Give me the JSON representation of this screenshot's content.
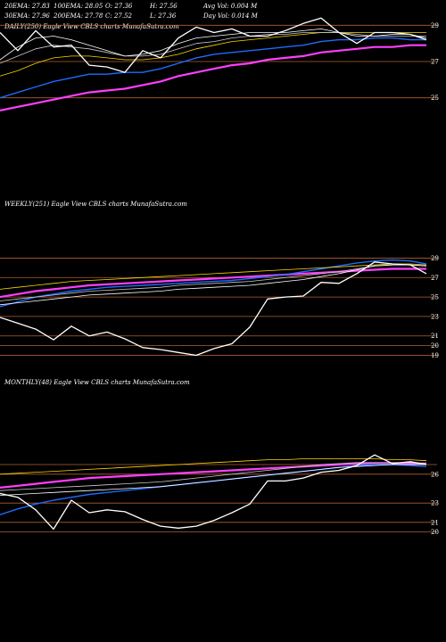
{
  "header": {
    "row1": [
      {
        "id": "ema20",
        "text": "20EMA: 27.83"
      },
      {
        "id": "ema100",
        "text": "100EMA: 28.05"
      },
      {
        "id": "open",
        "text": "O: 27.36"
      },
      {
        "id": "high",
        "text": "H: 27.56"
      },
      {
        "id": "avgvol",
        "text": "Avg Vol: 0.004  M"
      }
    ],
    "row2": [
      {
        "id": "ema30",
        "text": "30EMA: 27.96"
      },
      {
        "id": "ema200",
        "text": "200EMA: 27.78"
      },
      {
        "id": "close",
        "text": "C: 27.52"
      },
      {
        "id": "low",
        "text": "L: 27.36"
      },
      {
        "id": "dayvol",
        "text": "Day Vol: 0.014  M"
      }
    ]
  },
  "panels": {
    "daily": {
      "title": "DAILY(250) Eagle   View  CBLS charts MunafaSutra.com"
    },
    "weekly": {
      "title": "WEEKLY(251) Eagle   View  CBLS charts MunafaSutra.com"
    },
    "monthly": {
      "title": "MONTHLY(48) Eagle   View  CBLS charts MunafaSutra.com"
    }
  },
  "colors": {
    "background": "#000000",
    "price": "#ffffff",
    "ema_fast": "#ffffff",
    "ema_mid": "#c8c8c8",
    "ema_slow": "#ffd700",
    "ema_blue": "#1e6bff",
    "ema_magenta": "#ff3fff",
    "level_line": "#b06030"
  },
  "chart_data": [
    {
      "type": "line",
      "panel": "daily",
      "title": "DAILY(250) Eagle   View  CBLS charts MunafaSutra.com",
      "yticks": [
        "29",
        "27",
        "25"
      ],
      "ylim": [
        24,
        30
      ],
      "x": [
        0,
        20,
        40,
        60,
        80,
        100,
        120,
        140,
        160,
        180,
        200,
        220,
        240,
        260,
        280,
        300,
        320,
        340,
        360,
        380,
        400,
        420,
        440,
        460,
        478
      ],
      "levels": [
        29,
        27,
        25
      ],
      "series": [
        {
          "values": [
            28.6,
            27.6,
            28.7,
            27.8,
            27.9,
            26.8,
            26.7,
            26.4,
            27.6,
            27.2,
            28.3,
            28.9,
            28.6,
            28.8,
            28.4,
            28.4,
            28.7,
            29.1,
            29.4,
            28.6,
            28.0,
            28.6,
            28.6,
            28.5,
            28.2
          ]
        },
        {
          "values": [
            27.1,
            27.8,
            28.3,
            28.4,
            28.2,
            27.9,
            27.6,
            27.3,
            27.4,
            27.6,
            28.0,
            28.3,
            28.4,
            28.5,
            28.6,
            28.6,
            28.6,
            28.7,
            28.8,
            28.6,
            28.4,
            28.4,
            28.5,
            28.5,
            28.3
          ]
        },
        {
          "values": [
            26.9,
            27.3,
            27.7,
            27.9,
            27.8,
            27.7,
            27.5,
            27.3,
            27.3,
            27.4,
            27.7,
            28.0,
            28.1,
            28.3,
            28.4,
            28.5,
            28.5,
            28.6,
            28.6,
            28.6,
            28.5,
            28.4,
            28.4,
            28.4,
            28.4
          ]
        },
        {
          "values": [
            26.2,
            26.5,
            26.9,
            27.2,
            27.3,
            27.3,
            27.2,
            27.1,
            27.1,
            27.2,
            27.4,
            27.7,
            27.9,
            28.1,
            28.2,
            28.3,
            28.4,
            28.5,
            28.6,
            28.6,
            28.6,
            28.6,
            28.6,
            28.6,
            28.6
          ]
        },
        {
          "values": [
            25.0,
            25.3,
            25.6,
            25.9,
            26.1,
            26.3,
            26.3,
            26.4,
            26.4,
            26.6,
            26.9,
            27.2,
            27.4,
            27.5,
            27.6,
            27.7,
            27.8,
            27.9,
            28.1,
            28.2,
            28.2,
            28.3,
            28.3,
            28.2,
            28.2
          ]
        },
        {
          "values": [
            24.3,
            24.5,
            24.7,
            24.9,
            25.1,
            25.3,
            25.4,
            25.5,
            25.7,
            25.9,
            26.2,
            26.4,
            26.6,
            26.8,
            26.9,
            27.1,
            27.2,
            27.3,
            27.5,
            27.6,
            27.7,
            27.8,
            27.8,
            27.9,
            27.9
          ]
        }
      ]
    },
    {
      "type": "line",
      "panel": "weekly",
      "title": "WEEKLY(251) Eagle   View  CBLS charts MunafaSutra.com",
      "yticks": [
        "29",
        "27",
        "25",
        "23",
        "21",
        "20",
        "19"
      ],
      "ylim": [
        18.5,
        29.5
      ],
      "x": [
        0,
        20,
        40,
        60,
        80,
        100,
        120,
        140,
        160,
        180,
        200,
        220,
        240,
        260,
        280,
        300,
        320,
        340,
        360,
        380,
        400,
        420,
        440,
        460,
        478
      ],
      "levels": [
        29,
        27,
        25,
        23,
        21,
        20,
        19
      ],
      "series": [
        {
          "values": [
            22.9,
            22.3,
            21.7,
            20.6,
            22.0,
            21.0,
            21.4,
            20.7,
            19.8,
            19.6,
            19.3,
            19.0,
            19.7,
            20.2,
            21.9,
            24.8,
            25.0,
            25.1,
            26.5,
            26.4,
            27.4,
            28.6,
            28.4,
            28.3,
            27.4
          ]
        },
        {
          "values": [
            24.2,
            24.4,
            24.6,
            24.8,
            25.0,
            25.2,
            25.3,
            25.4,
            25.5,
            25.6,
            25.8,
            25.9,
            26.0,
            26.1,
            26.2,
            26.4,
            26.6,
            26.8,
            27.1,
            27.4,
            27.8,
            28.2,
            28.3,
            28.3,
            28.2
          ]
        },
        {
          "values": [
            24.6,
            24.8,
            25.0,
            25.2,
            25.4,
            25.6,
            25.7,
            25.8,
            25.9,
            26.0,
            26.2,
            26.3,
            26.4,
            26.5,
            26.6,
            26.8,
            27.0,
            27.2,
            27.4,
            27.6,
            27.9,
            28.2,
            28.3,
            28.3,
            28.2
          ]
        },
        {
          "values": [
            25.8,
            26.0,
            26.2,
            26.4,
            26.6,
            26.7,
            26.8,
            26.9,
            27.0,
            27.1,
            27.2,
            27.3,
            27.4,
            27.5,
            27.6,
            27.7,
            27.8,
            27.9,
            28.0,
            28.1,
            28.2,
            28.3,
            28.4,
            28.4,
            28.3
          ]
        },
        {
          "values": [
            24.0,
            24.5,
            25.0,
            25.3,
            25.6,
            25.8,
            26.0,
            26.1,
            26.2,
            26.3,
            26.4,
            26.5,
            26.6,
            26.7,
            26.9,
            27.1,
            27.3,
            27.6,
            27.9,
            28.2,
            28.5,
            28.7,
            28.8,
            28.7,
            28.4
          ]
        },
        {
          "values": [
            25.0,
            25.3,
            25.6,
            25.8,
            26.0,
            26.2,
            26.3,
            26.4,
            26.5,
            26.6,
            26.7,
            26.8,
            26.9,
            27.0,
            27.1,
            27.2,
            27.3,
            27.4,
            27.5,
            27.6,
            27.7,
            27.8,
            27.9,
            27.9,
            27.9
          ]
        }
      ]
    },
    {
      "type": "line",
      "panel": "monthly",
      "title": "MONTHLY(48) Eagle   View  CBLS charts MunafaSutra.com",
      "yticks": [
        "26",
        "23",
        "21",
        "20"
      ],
      "ylim": [
        19.5,
        29.5
      ],
      "x": [
        0,
        20,
        40,
        60,
        80,
        100,
        120,
        140,
        160,
        180,
        200,
        220,
        240,
        260,
        280,
        300,
        320,
        340,
        360,
        380,
        400,
        420,
        440,
        460,
        478
      ],
      "levels": [
        27,
        26,
        23,
        21,
        20
      ],
      "series": [
        {
          "values": [
            24.0,
            23.6,
            22.3,
            20.3,
            23.3,
            22.0,
            22.3,
            22.1,
            21.3,
            20.6,
            20.4,
            20.6,
            21.2,
            22.0,
            22.9,
            25.3,
            25.3,
            25.6,
            26.2,
            26.4,
            26.9,
            28.0,
            27.1,
            27.3,
            27.0
          ]
        },
        {
          "values": [
            23.8,
            23.9,
            24.0,
            24.1,
            24.2,
            24.3,
            24.4,
            24.5,
            24.6,
            24.7,
            24.9,
            25.1,
            25.3,
            25.5,
            25.7,
            25.9,
            26.1,
            26.3,
            26.5,
            26.7,
            26.8,
            26.9,
            27.0,
            27.0,
            27.0
          ]
        },
        {
          "values": [
            24.3,
            24.4,
            24.5,
            24.6,
            24.7,
            24.8,
            24.9,
            25.0,
            25.1,
            25.2,
            25.4,
            25.6,
            25.8,
            26.0,
            26.2,
            26.4,
            26.6,
            26.8,
            27.0,
            27.1,
            27.2,
            27.2,
            27.2,
            27.2,
            27.1
          ]
        },
        {
          "values": [
            26.0,
            26.1,
            26.2,
            26.3,
            26.4,
            26.5,
            26.6,
            26.7,
            26.8,
            26.9,
            27.0,
            27.1,
            27.2,
            27.3,
            27.4,
            27.5,
            27.5,
            27.6,
            27.6,
            27.6,
            27.6,
            27.6,
            27.5,
            27.5,
            27.4
          ]
        },
        {
          "values": [
            21.8,
            22.4,
            22.9,
            23.3,
            23.6,
            23.9,
            24.1,
            24.3,
            24.5,
            24.7,
            24.9,
            25.1,
            25.3,
            25.5,
            25.7,
            25.9,
            26.1,
            26.3,
            26.5,
            26.7,
            26.9,
            27.0,
            27.0,
            26.9,
            26.8
          ]
        },
        {
          "values": [
            24.6,
            24.8,
            25.0,
            25.2,
            25.4,
            25.6,
            25.7,
            25.8,
            25.9,
            26.0,
            26.1,
            26.2,
            26.3,
            26.4,
            26.5,
            26.6,
            26.7,
            26.8,
            26.9,
            27.0,
            27.1,
            27.1,
            27.1,
            27.1,
            27.1
          ]
        }
      ]
    }
  ]
}
